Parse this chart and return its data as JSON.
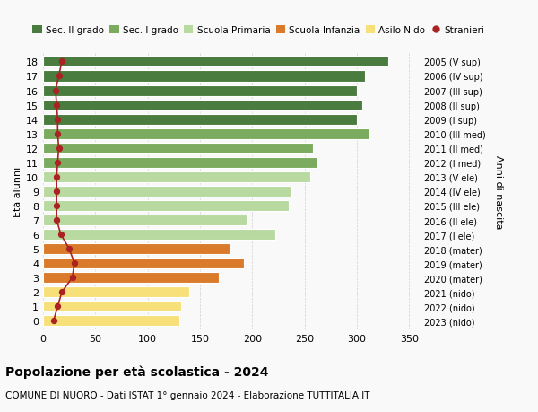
{
  "ages": [
    18,
    17,
    16,
    15,
    14,
    13,
    12,
    11,
    10,
    9,
    8,
    7,
    6,
    5,
    4,
    3,
    2,
    1,
    0
  ],
  "bar_values": [
    330,
    308,
    300,
    305,
    300,
    312,
    258,
    262,
    255,
    237,
    235,
    195,
    222,
    178,
    192,
    168,
    140,
    132,
    130
  ],
  "stranieri": [
    18,
    15,
    12,
    13,
    14,
    14,
    15,
    14,
    13,
    13,
    13,
    13,
    17,
    25,
    30,
    28,
    18,
    14,
    10
  ],
  "right_labels": [
    "2005 (V sup)",
    "2006 (IV sup)",
    "2007 (III sup)",
    "2008 (II sup)",
    "2009 (I sup)",
    "2010 (III med)",
    "2011 (II med)",
    "2012 (I med)",
    "2013 (V ele)",
    "2014 (IV ele)",
    "2015 (III ele)",
    "2016 (II ele)",
    "2017 (I ele)",
    "2018 (mater)",
    "2019 (mater)",
    "2020 (mater)",
    "2021 (nido)",
    "2022 (nido)",
    "2023 (nido)"
  ],
  "bar_colors": [
    "#4a7c3f",
    "#4a7c3f",
    "#4a7c3f",
    "#4a7c3f",
    "#4a7c3f",
    "#7aab5e",
    "#7aab5e",
    "#7aab5e",
    "#b8d9a0",
    "#b8d9a0",
    "#b8d9a0",
    "#b8d9a0",
    "#b8d9a0",
    "#d97b2a",
    "#d97b2a",
    "#d97b2a",
    "#f7e07a",
    "#f7e07a",
    "#f7e07a"
  ],
  "legend_labels": [
    "Sec. II grado",
    "Sec. I grado",
    "Scuola Primaria",
    "Scuola Infanzia",
    "Asilo Nido",
    "Stranieri"
  ],
  "legend_colors": [
    "#4a7c3f",
    "#7aab5e",
    "#b8d9a0",
    "#d97b2a",
    "#f7e07a",
    "#aa2222"
  ],
  "title": "Popolazione per età scolastica - 2024",
  "subtitle": "COMUNE DI NUORO - Dati ISTAT 1° gennaio 2024 - Elaborazione TUTTITALIA.IT",
  "ylabel_left": "Età alunni",
  "ylabel_right": "Anni di nascita",
  "xlim": [
    0,
    360
  ],
  "xticks": [
    0,
    50,
    100,
    150,
    200,
    250,
    300,
    350
  ],
  "stranieri_color": "#aa2222",
  "background_color": "#f9f9f9",
  "bar_height": 0.75
}
